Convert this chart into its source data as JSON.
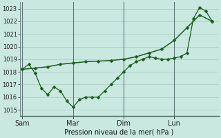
{
  "xlabel": "Pression niveau de la mer( hPa )",
  "background_color": "#c8e8e0",
  "grid_color": "#a8c8c0",
  "line_color": "#1a5c1a",
  "ylim": [
    1014.5,
    1023.5
  ],
  "yticks": [
    1015,
    1016,
    1017,
    1018,
    1019,
    1020,
    1021,
    1022,
    1023
  ],
  "xtick_labels": [
    "Sam",
    "Mar",
    "Dim",
    "Lun"
  ],
  "xtick_positions": [
    0,
    40,
    80,
    120
  ],
  "xlim": [
    -2,
    155
  ],
  "vline_positions": [
    0,
    40,
    80,
    120
  ],
  "line1_x": [
    0,
    5,
    10,
    15,
    20,
    25,
    30,
    35,
    40,
    45,
    50,
    55,
    60,
    65,
    70,
    75,
    80,
    85,
    90,
    95,
    100,
    105,
    110,
    115,
    120,
    125,
    130,
    135,
    140,
    145,
    150
  ],
  "line1_y": [
    1018.2,
    1018.6,
    1017.9,
    1016.7,
    1016.2,
    1016.8,
    1016.5,
    1015.7,
    1015.2,
    1015.8,
    1016.0,
    1016.0,
    1016.0,
    1016.5,
    1017.0,
    1017.5,
    1018.0,
    1018.5,
    1018.8,
    1019.0,
    1019.2,
    1019.1,
    1019.0,
    1019.0,
    1019.1,
    1019.2,
    1019.5,
    1022.2,
    1023.1,
    1022.8,
    1022.0
  ],
  "line2_x": [
    0,
    10,
    20,
    30,
    40,
    50,
    60,
    70,
    80,
    90,
    100,
    110,
    120,
    130,
    140,
    150
  ],
  "line2_y": [
    1018.2,
    1018.3,
    1018.4,
    1018.6,
    1018.7,
    1018.8,
    1018.85,
    1018.9,
    1019.0,
    1019.2,
    1019.5,
    1019.8,
    1020.5,
    1021.5,
    1022.5,
    1022.0
  ],
  "marker_size": 2.5
}
